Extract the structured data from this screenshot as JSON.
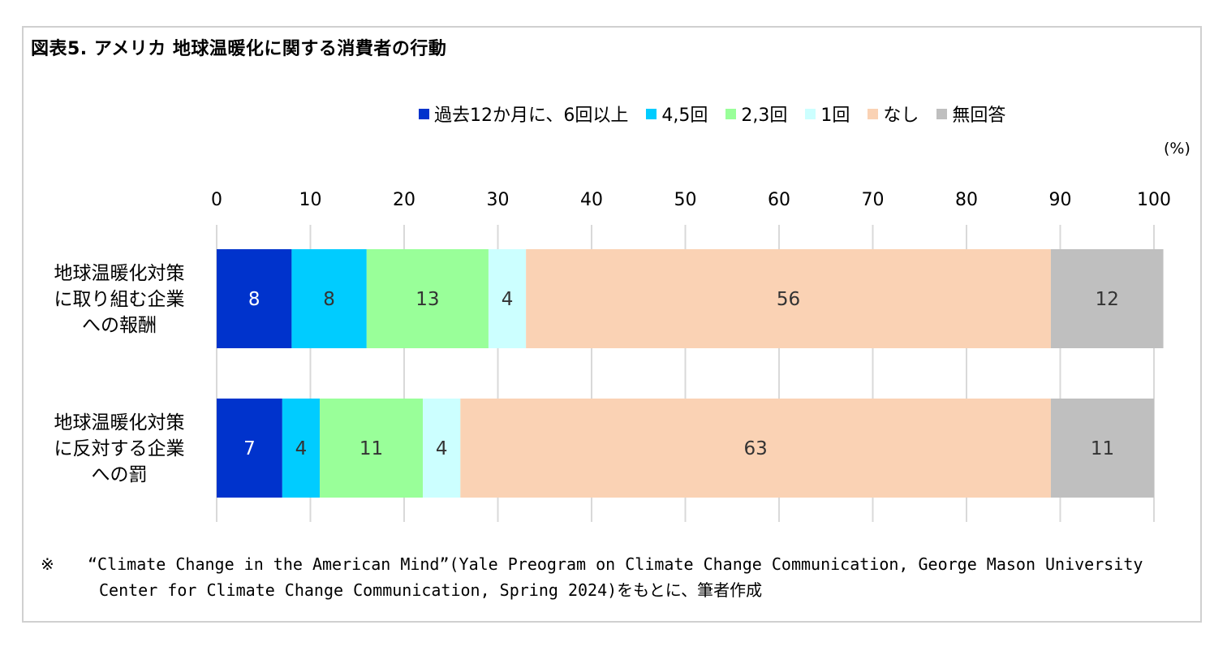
{
  "title": "図表5. アメリカ 地球温暖化に関する消費者の行動",
  "unit_label": "(%)",
  "note": {
    "mark": "※",
    "line1": "“Climate Change in the American Mind”(Yale Preogram on Climate Change Communication, George Mason University",
    "line2": "Center for Climate Change Communication, Spring 2024)をもとに、筆者作成"
  },
  "chart_data": {
    "type": "bar",
    "orientation": "horizontal",
    "stacked": true,
    "title": "図表5. アメリカ 地球温暖化に関する消費者の行動",
    "xlabel": "",
    "ylabel": "",
    "xlim": [
      0,
      100
    ],
    "x_ticks": [
      "0",
      "10",
      "20",
      "30",
      "40",
      "50",
      "60",
      "70",
      "80",
      "90",
      "100"
    ],
    "grid": true,
    "legend_position": "top",
    "categories": [
      [
        "地球温暖化対策",
        "に取り組む企業",
        "への報酬"
      ],
      [
        "地球温暖化対策",
        "に反対する企業",
        "への罰"
      ]
    ],
    "series": [
      {
        "name": "過去12か月に、6回以上",
        "color": "#0033CC",
        "label_color": "#FFFFFF",
        "values": [
          8,
          7
        ]
      },
      {
        "name": "4,5回",
        "color": "#00CCFF",
        "label_color": "#333333",
        "values": [
          8,
          4
        ]
      },
      {
        "name": "2,3回",
        "color": "#99FF99",
        "label_color": "#333333",
        "values": [
          13,
          11
        ]
      },
      {
        "name": "1回",
        "color": "#CCFFFF",
        "label_color": "#333333",
        "values": [
          4,
          4
        ]
      },
      {
        "name": "なし",
        "color": "#FAD2B4",
        "label_color": "#333333",
        "values": [
          56,
          63
        ]
      },
      {
        "name": "無回答",
        "color": "#BFBFBF",
        "label_color": "#333333",
        "values": [
          12,
          11
        ]
      }
    ]
  }
}
